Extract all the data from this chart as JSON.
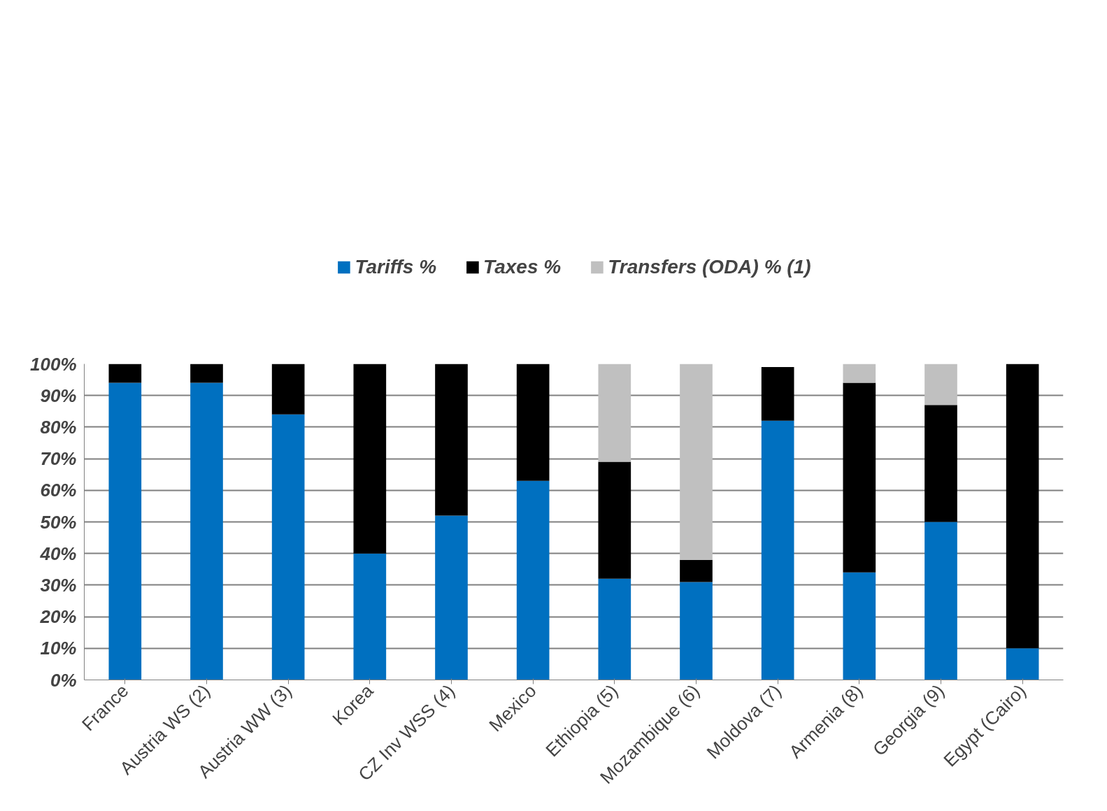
{
  "chart_data": {
    "type": "bar",
    "stacked": true,
    "categories": [
      "France",
      "Austria WS (2)",
      "Austria WW (3)",
      "Korea",
      "CZ Inv WSS (4)",
      "Mexico",
      "Ethiopia (5)",
      "Mozambique (6)",
      "Moldova (7)",
      "Armenia (8)",
      "Georgia (9)",
      "Egypt (Cairo)"
    ],
    "series": [
      {
        "name": "Tariffs %",
        "color": "#0070c0",
        "values": [
          94,
          94,
          84,
          40,
          52,
          63,
          32,
          31,
          82,
          34,
          50,
          10
        ]
      },
      {
        "name": "Taxes %",
        "color": "#000000",
        "values": [
          6,
          6,
          16,
          60,
          48,
          37,
          37,
          7,
          17,
          60,
          37,
          90
        ]
      },
      {
        "name": "Transfers (ODA) % (1)",
        "color": "#c0c0c0",
        "values": [
          0,
          0,
          0,
          0,
          0,
          0,
          31,
          62,
          0,
          6,
          13,
          0
        ]
      }
    ],
    "ylim": [
      0,
      100
    ],
    "yticks": [
      {
        "value": 0,
        "label": "0%"
      },
      {
        "value": 10,
        "label": "10%"
      },
      {
        "value": 20,
        "label": "20%"
      },
      {
        "value": 30,
        "label": "30%"
      },
      {
        "value": 40,
        "label": "40%"
      },
      {
        "value": 50,
        "label": "50%"
      },
      {
        "value": 60,
        "label": "60%"
      },
      {
        "value": 70,
        "label": "70%"
      },
      {
        "value": 80,
        "label": "80%"
      },
      {
        "value": 90,
        "label": "90%"
      },
      {
        "value": 100,
        "label": "100%"
      }
    ],
    "grid": "y",
    "legend": "top"
  }
}
